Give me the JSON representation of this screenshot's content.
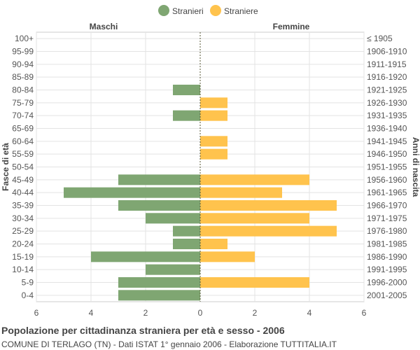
{
  "title": "Popolazione per cittadinanza straniera per età e sesso - 2006",
  "subtitle": "COMUNE DI TERLAGO (TN) - Dati ISTAT 1° gennaio 2006 - Elaborazione TUTTITALIA.IT",
  "chart_data": {
    "type": "bar",
    "orientation": "horizontal-pyramid",
    "legend": {
      "position": "top-center",
      "items": [
        "Stranieri",
        "Straniere"
      ]
    },
    "left_header": "Maschi",
    "right_header": "Femmine",
    "ylabel_left": "Fasce di età",
    "ylabel_right": "Anni di nascita",
    "categories": [
      "100+",
      "95-99",
      "90-94",
      "85-89",
      "80-84",
      "75-79",
      "70-74",
      "65-69",
      "60-64",
      "55-59",
      "50-54",
      "45-49",
      "40-44",
      "35-39",
      "30-34",
      "25-29",
      "20-24",
      "15-19",
      "10-14",
      "5-9",
      "0-4"
    ],
    "birth_years": [
      "≤ 1905",
      "1906-1910",
      "1911-1915",
      "1916-1920",
      "1921-1925",
      "1926-1930",
      "1931-1935",
      "1936-1940",
      "1941-1945",
      "1946-1950",
      "1951-1955",
      "1956-1960",
      "1961-1965",
      "1966-1970",
      "1971-1975",
      "1976-1980",
      "1981-1985",
      "1986-1990",
      "1991-1995",
      "1996-2000",
      "2001-2005"
    ],
    "series": [
      {
        "name": "Stranieri",
        "color": "#7fa672",
        "values": [
          0,
          0,
          0,
          0,
          1,
          0,
          1,
          0,
          0,
          0,
          0,
          3,
          5,
          3,
          2,
          1,
          1,
          4,
          2,
          3,
          3
        ]
      },
      {
        "name": "Straniere",
        "color": "#ffc34d",
        "values": [
          0,
          0,
          0,
          0,
          0,
          1,
          1,
          0,
          1,
          1,
          0,
          4,
          3,
          5,
          4,
          5,
          1,
          2,
          0,
          4,
          0
        ]
      }
    ],
    "x_ticks": [
      "6",
      "4",
      "2",
      "0",
      "2",
      "4",
      "6"
    ],
    "xlim": [
      -6,
      6
    ],
    "grid": true
  }
}
